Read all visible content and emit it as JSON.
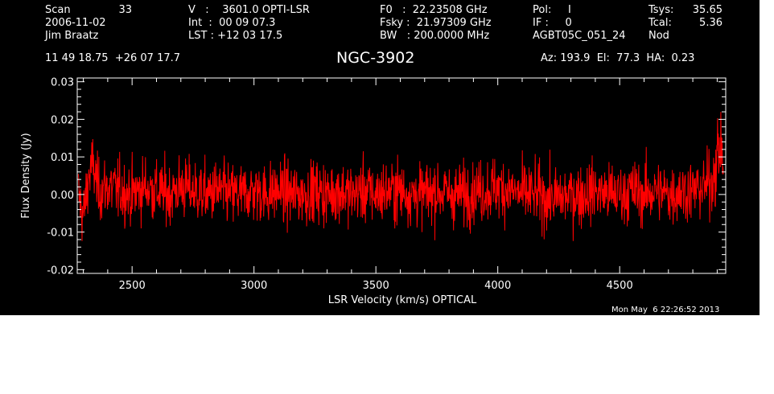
{
  "header": {
    "col1": {
      "scan_label": "Scan",
      "scan_value": "33",
      "date": "2006-11-02",
      "observer": "Jim Braatz",
      "coords": "11 49 18.75  +26 07 17.7"
    },
    "col2": {
      "velocity": "V   :    3601.0 OPTI-LSR",
      "int": "Int  :  00 09 07.3",
      "lst": "LST : +12 03 17.5"
    },
    "col3": {
      "f0": "F0   :  22.23508 GHz",
      "fsky": "Fsky :  21.97309 GHz",
      "bw": "BW   : 200.0000 MHz"
    },
    "col4": {
      "pol": "Pol:     I",
      "if": "IF :     0",
      "proc": "AGBT05C_051_24"
    },
    "col5": {
      "tsys_label": "Tsys:",
      "tsys_value": "35.65",
      "tcal_label": "Tcal:",
      "tcal_value": "5.36",
      "mode": "Nod"
    },
    "source": "NGC-3902",
    "pointing": "Az: 193.9  El:  77.3  HA:  0.23",
    "timestamp": "Mon May  6 22:26:52 2013"
  },
  "colors": {
    "background": "#000000",
    "axes": "#ffffff",
    "trace": "#ff0000",
    "page": "#ffffff"
  },
  "chart_data": {
    "type": "line",
    "title": "NGC-3902",
    "xlabel": "LSR Velocity (km/s) OPTICAL",
    "ylabel": "Flux Density (Jy)",
    "xlim": [
      2275,
      4935
    ],
    "ylim": [
      -0.021,
      0.031
    ],
    "x_ticks": [
      2500,
      3000,
      3500,
      4000,
      4500
    ],
    "x_tick_labels": [
      "2500",
      "3000",
      "3500",
      "4000",
      "4500"
    ],
    "y_ticks": [
      -0.02,
      -0.01,
      0.0,
      0.01,
      0.02,
      0.03
    ],
    "y_tick_labels": [
      "-0.02",
      "-0.01",
      "0.00",
      "0.01",
      "0.02",
      "0.03"
    ],
    "grid": false,
    "legend": "none",
    "series": [
      {
        "style": "noisy spectrum, rms about 0.005 Jy around 0, rising at high-velocity edge",
        "points": [
          [
            2280,
            0.0
          ],
          [
            2300,
            -0.006
          ],
          [
            2320,
            0.004
          ],
          [
            2340,
            0.008
          ],
          [
            2360,
            0.001
          ],
          [
            2400,
            0.002
          ],
          [
            2450,
            0.001
          ],
          [
            2500,
            0.0
          ],
          [
            2550,
            0.002
          ],
          [
            2600,
            0.001
          ],
          [
            2650,
            0.0
          ],
          [
            2700,
            0.002
          ],
          [
            2750,
            0.001
          ],
          [
            2800,
            0.0
          ],
          [
            2850,
            0.001
          ],
          [
            2900,
            0.0
          ],
          [
            2950,
            0.0
          ],
          [
            3000,
            0.001
          ],
          [
            3050,
            0.0
          ],
          [
            3100,
            0.001
          ],
          [
            3150,
            0.0
          ],
          [
            3200,
            0.0
          ],
          [
            3250,
            0.001
          ],
          [
            3300,
            0.0
          ],
          [
            3350,
            0.001
          ],
          [
            3400,
            0.0
          ],
          [
            3450,
            0.001
          ],
          [
            3500,
            0.0
          ],
          [
            3550,
            0.001
          ],
          [
            3600,
            0.001
          ],
          [
            3650,
            0.0
          ],
          [
            3700,
            0.0
          ],
          [
            3750,
            0.001
          ],
          [
            3800,
            0.0
          ],
          [
            3850,
            0.0
          ],
          [
            3900,
            0.001
          ],
          [
            3950,
            0.001
          ],
          [
            4000,
            0.002
          ],
          [
            4050,
            0.001
          ],
          [
            4100,
            0.0
          ],
          [
            4150,
            0.0
          ],
          [
            4200,
            -0.001
          ],
          [
            4250,
            -0.001
          ],
          [
            4300,
            0.0
          ],
          [
            4350,
            0.0
          ],
          [
            4400,
            0.001
          ],
          [
            4450,
            0.0
          ],
          [
            4500,
            0.0
          ],
          [
            4550,
            0.001
          ],
          [
            4600,
            0.0
          ],
          [
            4650,
            0.001
          ],
          [
            4700,
            0.0
          ],
          [
            4750,
            0.001
          ],
          [
            4800,
            0.001
          ],
          [
            4850,
            0.002
          ],
          [
            4880,
            0.004
          ],
          [
            4900,
            0.01
          ],
          [
            4915,
            0.014
          ],
          [
            4925,
            0.009
          ]
        ]
      }
    ]
  }
}
